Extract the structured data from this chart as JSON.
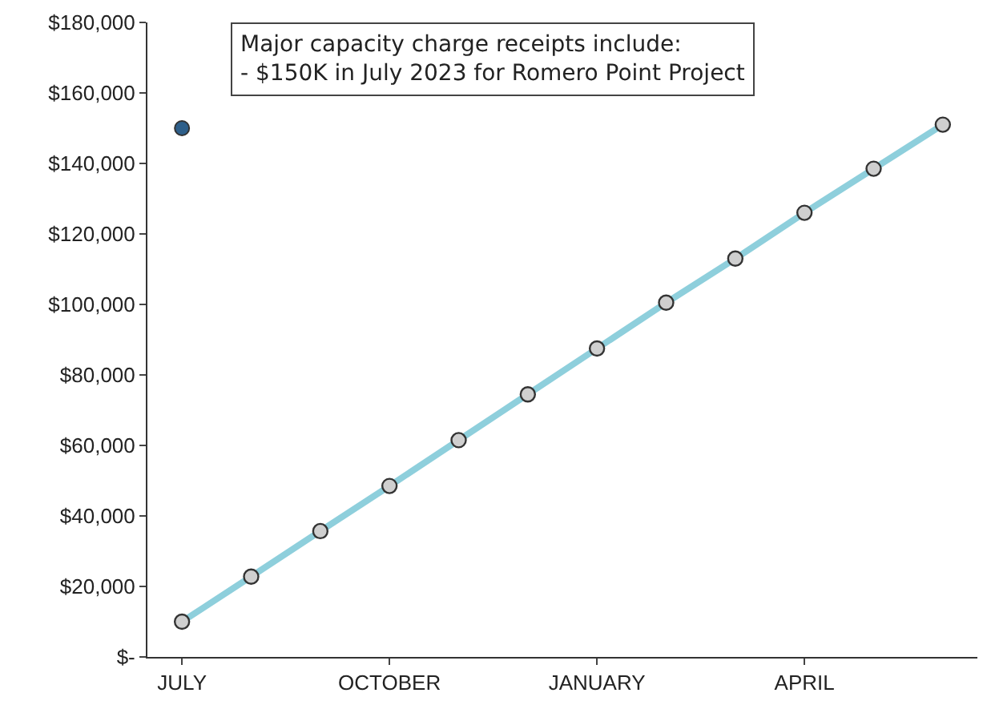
{
  "chart_data": {
    "type": "line",
    "categories": [
      "JULY",
      null,
      null,
      "OCTOBER",
      null,
      null,
      "JANUARY",
      null,
      null,
      "APRIL",
      null,
      null
    ],
    "series": [
      {
        "color": "#8ecfdc",
        "values": [
          10000,
          22800,
          35700,
          48500,
          61500,
          74500,
          87500,
          100500,
          113000,
          126000,
          138500,
          151000
        ]
      },
      {
        "type": "scatter",
        "color": "#2e5f8a",
        "values": [
          150000,
          null,
          null,
          null,
          null,
          null,
          null,
          null,
          null,
          null,
          null,
          null
        ]
      }
    ],
    "ylim": [
      0,
      180000
    ],
    "yticks": [
      {
        "value": 0,
        "label": "$-"
      },
      {
        "value": 20000,
        "label": "$20,000"
      },
      {
        "value": 40000,
        "label": "$40,000"
      },
      {
        "value": 60000,
        "label": "$60,000"
      },
      {
        "value": 80000,
        "label": "$80,000"
      },
      {
        "value": 100000,
        "label": "$100,000"
      },
      {
        "value": 120000,
        "label": "$120,000"
      },
      {
        "value": 140000,
        "label": "$140,000"
      },
      {
        "value": 160000,
        "label": "$160,000"
      },
      {
        "value": 180000,
        "label": "$180,000"
      }
    ],
    "annotations": [
      "Major capacity charge receipts include:\n- $150K in July 2023 for Romero Point Project"
    ],
    "marker": "circle"
  }
}
